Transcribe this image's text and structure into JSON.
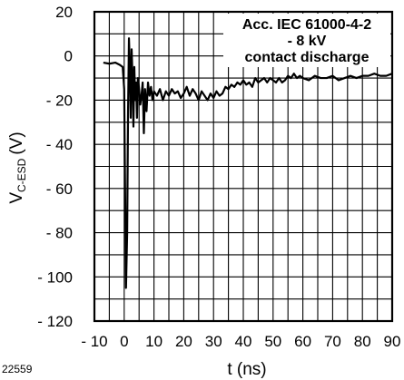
{
  "figure_id": "22559",
  "chart_data": {
    "type": "line",
    "title": "",
    "xlabel": "t (ns)",
    "ylabel_main": "V",
    "ylabel_sub": "C-ESD",
    "ylabel_unit": "(V)",
    "xlim": [
      -10,
      90
    ],
    "ylim": [
      -120,
      20
    ],
    "x_ticks": [
      -10,
      0,
      10,
      20,
      30,
      40,
      50,
      60,
      70,
      80,
      90
    ],
    "x_tick_labels": [
      "- 10",
      "0",
      "10",
      "20",
      "30",
      "40",
      "50",
      "60",
      "70",
      "80",
      "90"
    ],
    "y_ticks": [
      20,
      0,
      -20,
      -40,
      -60,
      -80,
      -100,
      -120
    ],
    "y_tick_labels": [
      "20",
      "0",
      "- 20",
      "- 40",
      "- 60",
      "- 80",
      "- 100",
      "- 120"
    ],
    "grid": true,
    "annotation": [
      "Acc. IEC 61000-4-2",
      "- 8 kV",
      "contact discharge"
    ],
    "series": [
      {
        "x": [
          -7,
          -5,
          -3,
          -1.5,
          -0.5,
          0,
          0.3,
          0.6,
          1.0,
          1.3,
          1.6,
          1.9,
          2.2,
          2.5,
          2.8,
          3.1,
          3.4,
          3.7,
          4.0,
          4.3,
          4.6,
          5.0,
          5.4,
          5.8,
          6.2,
          6.6,
          7.0,
          7.5,
          8.0,
          8.5,
          9.0,
          9.5,
          10.0,
          11,
          12,
          13,
          14,
          15,
          16,
          17,
          18,
          19,
          20,
          21,
          22,
          23,
          24,
          25,
          26,
          27,
          28,
          29,
          30,
          31,
          32,
          33,
          34,
          35,
          36,
          37,
          38,
          39,
          40,
          41,
          42,
          43,
          44,
          45,
          46,
          47,
          48,
          49,
          50,
          51,
          52,
          53,
          54,
          55,
          56,
          57,
          58,
          59,
          60,
          62,
          64,
          66,
          68,
          70,
          72,
          74,
          76,
          78,
          80,
          82,
          84,
          86,
          88,
          90
        ],
        "y": [
          -3,
          -3.5,
          -3,
          -4,
          -5,
          -15,
          -60,
          -105,
          -80,
          -25,
          8,
          -5,
          -28,
          3,
          -10,
          -32,
          -5,
          -20,
          -12,
          -28,
          -10,
          -15,
          -22,
          -18,
          -12,
          -35,
          -15,
          -25,
          -12,
          -18,
          -14,
          -20,
          -16,
          -18,
          -15,
          -20,
          -16,
          -18,
          -15,
          -17,
          -16,
          -19,
          -17,
          -14,
          -18,
          -15,
          -17,
          -20,
          -16,
          -18,
          -20,
          -17,
          -19,
          -16,
          -18,
          -17,
          -14,
          -15,
          -13,
          -14,
          -12,
          -13,
          -11,
          -13,
          -12,
          -14,
          -10,
          -12,
          -11,
          -10,
          -12,
          -10,
          -11,
          -12,
          -10,
          -12,
          -11,
          -9,
          -10,
          -8,
          -10,
          -9,
          -10,
          -11,
          -9,
          -10,
          -10,
          -9,
          -11,
          -10,
          -9,
          -10,
          -9,
          -9,
          -8,
          -9,
          -9,
          -8
        ]
      }
    ]
  }
}
